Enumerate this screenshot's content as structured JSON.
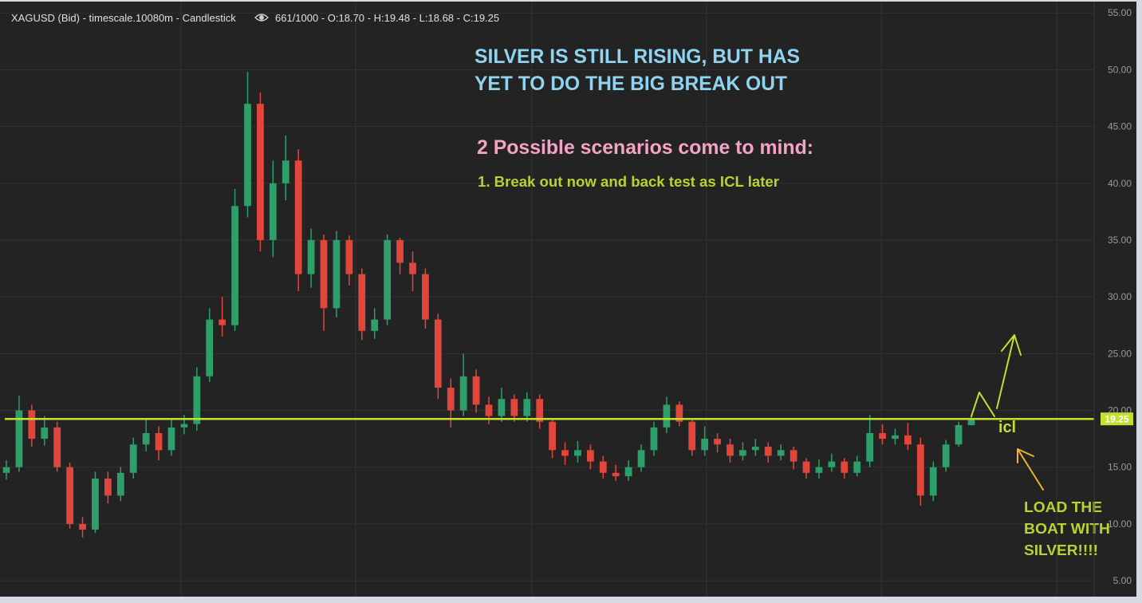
{
  "chart_data": {
    "type": "candlestick",
    "symbol_text": "XAGUSD (Bid) - timescale.10080m - Candlestick",
    "ohlc_text": "661/1000 - O:18.70 - H:19.48 - L:18.68 - C:19.25",
    "open": [
      14.5,
      15.0,
      20.0,
      17.5,
      18.5,
      15.0,
      10.0,
      9.5,
      14.0,
      12.5,
      14.5,
      17.0,
      18.0,
      16.5,
      18.5,
      18.8,
      23.0,
      28.0,
      27.5,
      38.0,
      47.0,
      35.0,
      40.0,
      42.0,
      32.0,
      35.0,
      29.0,
      35.0,
      32.0,
      27.0,
      28.0,
      35.0,
      33.0,
      32.0,
      28.0,
      22.0,
      20.0,
      23.0,
      20.5,
      19.5,
      21.0,
      19.5,
      21.0,
      19.0,
      16.5,
      16.0,
      16.5,
      15.5,
      14.5,
      14.2,
      15.0,
      16.5,
      18.5,
      20.5,
      19.0,
      16.5,
      17.5,
      17.0,
      16.0,
      16.5,
      16.8,
      16.0,
      16.5,
      15.5,
      14.5,
      15.0,
      15.5,
      14.5,
      15.5,
      18.0,
      17.5,
      17.8,
      17.0,
      12.5,
      15.0,
      17.0,
      18.7
    ],
    "high": [
      15.6,
      21.3,
      20.5,
      19.5,
      19.0,
      15.4,
      10.6,
      14.6,
      14.6,
      15.0,
      17.6,
      19.3,
      18.6,
      19.2,
      19.6,
      23.8,
      29.0,
      30.0,
      39.5,
      49.8,
      48.0,
      42.0,
      44.2,
      43.0,
      36.0,
      35.5,
      35.8,
      35.4,
      32.5,
      29.0,
      35.5,
      35.2,
      34.0,
      32.5,
      28.5,
      22.8,
      25.0,
      23.6,
      21.2,
      22.0,
      21.4,
      21.6,
      21.4,
      19.3,
      17.2,
      17.3,
      17.0,
      16.0,
      15.2,
      15.6,
      17.0,
      19.0,
      21.2,
      20.8,
      19.2,
      18.6,
      18.0,
      17.5,
      17.2,
      17.5,
      17.2,
      17.0,
      16.8,
      15.8,
      15.7,
      16.2,
      15.8,
      16.0,
      19.6,
      18.8,
      18.4,
      18.9,
      17.6,
      15.5,
      17.4,
      19.0,
      19.48
    ],
    "low": [
      13.9,
      14.6,
      16.8,
      16.9,
      14.6,
      9.6,
      8.8,
      9.2,
      11.8,
      12.0,
      14.0,
      16.4,
      15.6,
      16.0,
      17.9,
      18.2,
      22.5,
      26.5,
      27.0,
      37.0,
      34.0,
      33.5,
      38.5,
      30.5,
      30.8,
      27.0,
      28.2,
      31.0,
      26.2,
      26.3,
      27.5,
      32.0,
      30.5,
      27.2,
      21.0,
      18.5,
      19.5,
      19.8,
      18.8,
      19.0,
      19.0,
      19.0,
      18.4,
      15.8,
      15.2,
      15.4,
      14.8,
      14.0,
      13.8,
      13.8,
      14.6,
      16.0,
      18.0,
      18.6,
      16.0,
      16.0,
      16.3,
      15.4,
      15.6,
      16.0,
      15.4,
      15.6,
      14.8,
      14.0,
      14.0,
      14.6,
      14.0,
      14.2,
      15.0,
      17.0,
      17.0,
      16.5,
      11.6,
      12.0,
      14.6,
      16.8,
      18.68
    ],
    "close": [
      15.0,
      20.0,
      17.5,
      18.5,
      15.0,
      10.0,
      9.5,
      14.0,
      12.5,
      14.5,
      17.0,
      18.0,
      16.5,
      18.5,
      18.8,
      23.0,
      28.0,
      27.5,
      38.0,
      47.0,
      35.0,
      40.0,
      42.0,
      32.0,
      35.0,
      29.0,
      35.0,
      32.0,
      27.0,
      28.0,
      35.0,
      33.0,
      32.0,
      28.0,
      22.0,
      20.0,
      23.0,
      20.5,
      19.5,
      21.0,
      19.5,
      21.0,
      19.0,
      16.5,
      16.0,
      16.5,
      15.5,
      14.5,
      14.2,
      15.0,
      16.5,
      18.5,
      20.5,
      19.0,
      16.5,
      17.5,
      17.0,
      16.0,
      16.5,
      16.8,
      16.0,
      16.5,
      15.5,
      14.5,
      15.0,
      15.5,
      14.5,
      15.5,
      18.0,
      17.5,
      17.8,
      17.0,
      12.5,
      15.0,
      17.0,
      18.7,
      19.25
    ],
    "up_color": "#2e9e6a",
    "down_color": "#e0463c",
    "ylim": [
      3.6,
      56
    ],
    "yticks": [
      {
        "value": 5,
        "label": "5.00"
      },
      {
        "value": 10,
        "label": "10.00"
      },
      {
        "value": 15,
        "label": "15.00"
      },
      {
        "value": 20,
        "label": "20.00"
      },
      {
        "value": 25,
        "label": "25.00"
      },
      {
        "value": 30,
        "label": "30.00"
      },
      {
        "value": 35,
        "label": "35.00"
      },
      {
        "value": 40,
        "label": "40.00"
      },
      {
        "value": 45,
        "label": "45.00"
      },
      {
        "value": 50,
        "label": "50.00"
      },
      {
        "value": 55,
        "label": "55.00"
      }
    ],
    "grid": true,
    "price_line": {
      "value": 19.25,
      "color": "#c2e02e"
    },
    "annotations": [
      {
        "text": "SILVER IS STILL RISING, BUT HAS",
        "color": "#8fd3f0"
      },
      {
        "text": "YET TO DO THE BIG BREAK OUT",
        "color": "#8fd3f0"
      },
      {
        "text": "2 Possible scenarios come to mind:",
        "color": "#f4a3c4"
      },
      {
        "text": "1. Break out now and back test as ICL later",
        "color": "#b5d430"
      },
      {
        "text": "icl",
        "color": "#c2e02e"
      },
      {
        "text": "LOAD THE",
        "color": "#b5d430"
      },
      {
        "text": "BOAT WITH",
        "color": "#b5d430"
      },
      {
        "text": "SILVER!!!!",
        "color": "#b5d430"
      }
    ]
  }
}
